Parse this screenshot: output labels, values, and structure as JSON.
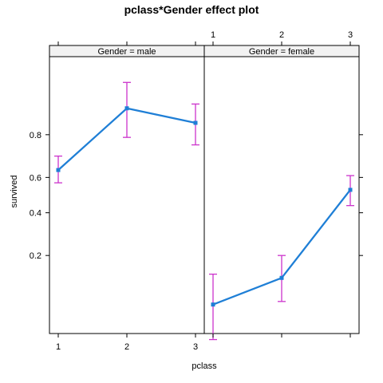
{
  "chart_data": {
    "type": "line",
    "title": "pclass*Gender effect plot",
    "xlabel": "pclass",
    "ylabel": "survived",
    "x_categories": [
      "1",
      "2",
      "3"
    ],
    "y_ticks": [
      "0.2",
      "0.4",
      "0.6",
      "0.8"
    ],
    "y_tick_values": [
      0.2,
      0.4,
      0.6,
      0.8
    ],
    "y_scale": "logit",
    "ylim": [
      0.04,
      0.96
    ],
    "panels": [
      {
        "strip": "Gender = male",
        "values": [
          0.64,
          0.88,
          0.84
        ],
        "lower": [
          0.57,
          0.79,
          0.76
        ],
        "upper": [
          0.71,
          0.93,
          0.89
        ]
      },
      {
        "strip": "Gender = female",
        "values": [
          0.075,
          0.13,
          0.53
        ],
        "lower": [
          0.035,
          0.08,
          0.44
        ],
        "upper": [
          0.14,
          0.2,
          0.61
        ]
      }
    ],
    "colors": {
      "line": "#1f7fd6",
      "ci": "#cc33cc",
      "strip_bg": "#f2f2f2"
    }
  }
}
